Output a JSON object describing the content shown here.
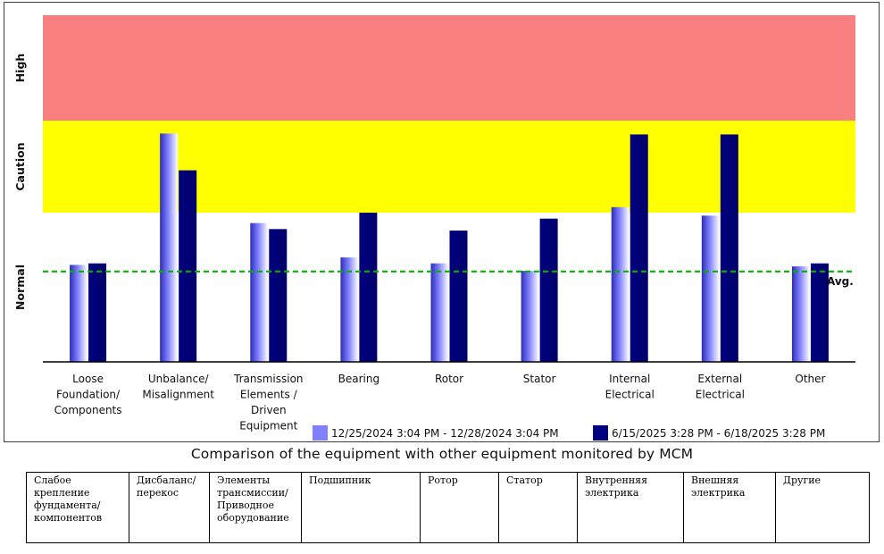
{
  "chart_data": {
    "type": "bar",
    "zones": [
      {
        "name": "High",
        "from": 2.0,
        "to": 3.0,
        "color": "#f88080"
      },
      {
        "name": "Caution",
        "from": 1.0,
        "to": 2.0,
        "color": "#ffff00"
      },
      {
        "name": "Normal",
        "from": 0.0,
        "to": 1.0,
        "color": "#ffffff"
      }
    ],
    "categories": [
      [
        "Loose",
        "Foundation/",
        "Components"
      ],
      [
        "Unbalance/",
        "Misalignment"
      ],
      [
        "Transmission",
        "Elements /",
        "Driven",
        "Equipment"
      ],
      [
        "Bearing"
      ],
      [
        "Rotor"
      ],
      [
        "Stator"
      ],
      [
        "Internal",
        "Electrical"
      ],
      [
        "External",
        "Electrical"
      ],
      [
        "Other"
      ]
    ],
    "series": [
      {
        "name": "12/25/2024 3:04 PM - 12/28/2024 3:04 PM",
        "color": "#8080ff",
        "values": [
          0.65,
          1.86,
          0.93,
          0.7,
          0.66,
          0.61,
          1.06,
          0.98,
          0.64
        ]
      },
      {
        "name": "6/15/2025 3:28 PM - 6/18/2025 3:28 PM",
        "color": "#000080",
        "values": [
          0.66,
          1.46,
          0.89,
          1.0,
          0.88,
          0.96,
          1.85,
          1.85,
          0.66
        ]
      }
    ],
    "average": {
      "label": "Avg.",
      "value": 0.6,
      "color": "#00b400"
    },
    "ylim": [
      0,
      3.0
    ],
    "grid": false,
    "legend": "bottom"
  },
  "caption": "Comparison of the equipment with other equipment monitored by MCM",
  "table": {
    "cells": [
      "Слабое крепление фундамента/ компонентов",
      "Дисбаланс/ перекос",
      "Элементы трансмиссии/ Приводное оборудование",
      "Подшипник",
      "Ротор",
      "Статор",
      "Внутренняя электрика",
      "Внешняя электрика",
      "Другие"
    ]
  }
}
